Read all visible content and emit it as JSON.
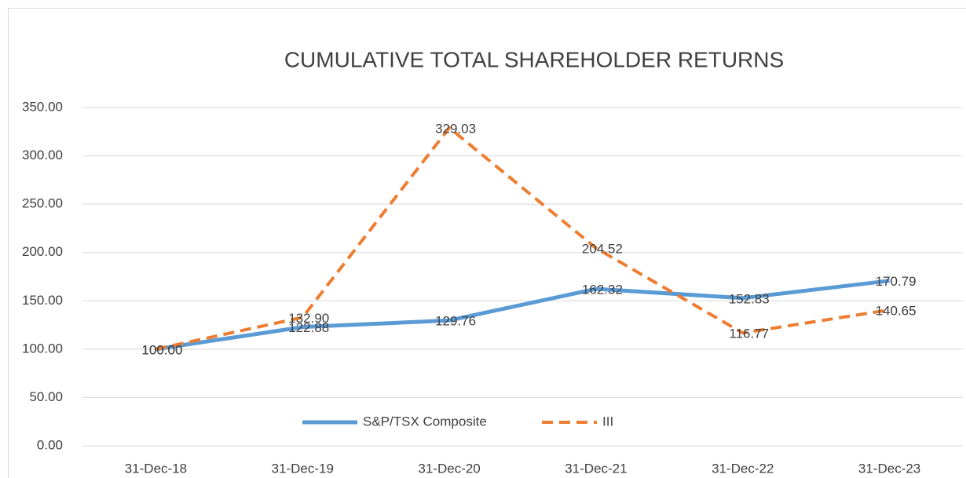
{
  "chart_data": {
    "type": "line",
    "title": "CUMULATIVE TOTAL SHAREHOLDER RETURNS",
    "categories": [
      "31-Dec-18",
      "31-Dec-19",
      "31-Dec-20",
      "31-Dec-21",
      "31-Dec-22",
      "31-Dec-23"
    ],
    "series": [
      {
        "name": "S&P/TSX Composite",
        "color": "#5b9bd5",
        "dashed": false,
        "values": [
          100,
          122.88,
          129.76,
          162.32,
          152.83,
          170.79
        ],
        "value_labels": [
          "100.00",
          "122.88",
          "129.76",
          "162.32",
          "152.83",
          "170.79"
        ]
      },
      {
        "name": "III",
        "color": "#ed7d31",
        "dashed": true,
        "values": [
          100,
          132.9,
          329.03,
          204.52,
          116.77,
          140.65
        ],
        "value_labels": [
          "100.00",
          "132.90",
          "329.03",
          "204.52",
          "116.77",
          "140.65"
        ]
      }
    ],
    "ylim": [
      0,
      350
    ],
    "yticks": [
      {
        "value": 0,
        "label": "0.00"
      },
      {
        "value": 50,
        "label": "50.00"
      },
      {
        "value": 100,
        "label": "100.00"
      },
      {
        "value": 150,
        "label": "150.00"
      },
      {
        "value": 200,
        "label": "200.00"
      },
      {
        "value": 250,
        "label": "250.00"
      },
      {
        "value": 300,
        "label": "300.00"
      },
      {
        "value": 350,
        "label": "350.00"
      }
    ],
    "grid": true,
    "legend": "bottom"
  }
}
